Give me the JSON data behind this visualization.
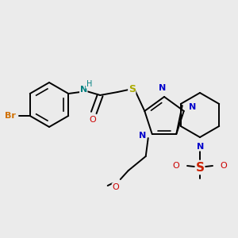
{
  "background_color": "#ebebeb",
  "fig_size": [
    3.0,
    3.0
  ],
  "dpi": 100,
  "bond_color": "#000000",
  "bond_lw": 1.4,
  "colors": {
    "Br": "#d07000",
    "N": "#0000cc",
    "O": "#cc0000",
    "S_thio": "#aaaa00",
    "S_sulfonyl": "#cc2200",
    "NH": "#008080",
    "H": "#008080"
  },
  "font": "DejaVu Sans",
  "fs": 7.5
}
